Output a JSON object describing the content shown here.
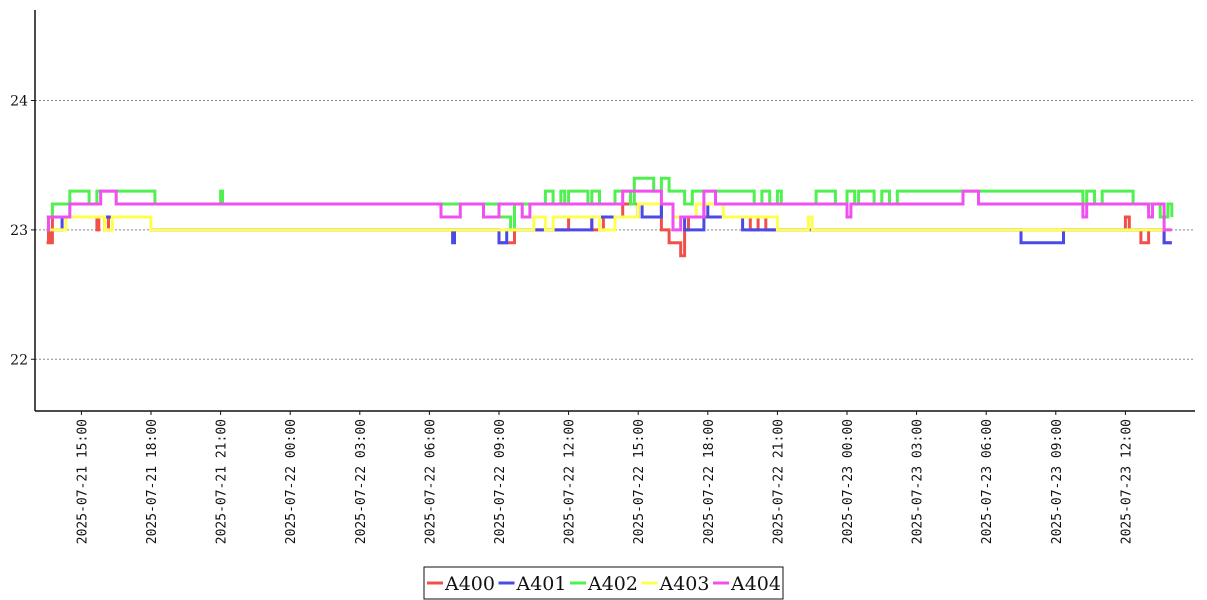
{
  "chart_data": {
    "type": "line",
    "title": "",
    "xlabel": "",
    "ylabel": "",
    "x_range": [
      "2025-07-21 13:00",
      "2025-07-23 15:00"
    ],
    "ylim": [
      21.6,
      24.7
    ],
    "yticks": [
      22,
      23,
      24
    ],
    "ytick_labels": [
      "22",
      "23",
      "24"
    ],
    "grid": "horizontal-dotted",
    "legend_position": "bottom-center",
    "xticks": [
      "2025-07-21 15:00",
      "2025-07-21 18:00",
      "2025-07-21 21:00",
      "2025-07-22 00:00",
      "2025-07-22 03:00",
      "2025-07-22 06:00",
      "2025-07-22 09:00",
      "2025-07-22 12:00",
      "2025-07-22 15:00",
      "2025-07-22 18:00",
      "2025-07-22 21:00",
      "2025-07-23 00:00",
      "2025-07-23 03:00",
      "2025-07-23 06:00",
      "2025-07-23 09:00",
      "2025-07-23 12:00"
    ],
    "series": [
      {
        "name": "A400",
        "color": "#f0504a",
        "points": [
          [
            "2025-07-21 13:30",
            22.9
          ],
          [
            "2025-07-21 13:35",
            23.0
          ],
          [
            "2025-07-21 13:40",
            22.9
          ],
          [
            "2025-07-21 13:45",
            23.1
          ],
          [
            "2025-07-21 15:40",
            23.0
          ],
          [
            "2025-07-21 15:45",
            23.1
          ],
          [
            "2025-07-21 16:00",
            23.0
          ],
          [
            "2025-07-21 16:10",
            23.1
          ],
          [
            "2025-07-21 18:00",
            23.0
          ],
          [
            "2025-07-22 09:00",
            22.9
          ],
          [
            "2025-07-22 09:40",
            23.0
          ],
          [
            "2025-07-22 10:00",
            23.0
          ],
          [
            "2025-07-22 12:00",
            23.1
          ],
          [
            "2025-07-22 13:00",
            23.0
          ],
          [
            "2025-07-22 13:30",
            23.1
          ],
          [
            "2025-07-22 14:20",
            23.2
          ],
          [
            "2025-07-22 16:00",
            23.0
          ],
          [
            "2025-07-22 16:20",
            22.9
          ],
          [
            "2025-07-22 16:50",
            22.8
          ],
          [
            "2025-07-22 17:00",
            23.0
          ],
          [
            "2025-07-22 17:10",
            23.1
          ],
          [
            "2025-07-22 19:50",
            23.0
          ],
          [
            "2025-07-22 20:10",
            23.1
          ],
          [
            "2025-07-22 20:30",
            23.0
          ],
          [
            "2025-07-23 12:00",
            23.1
          ],
          [
            "2025-07-23 12:10",
            23.0
          ],
          [
            "2025-07-23 12:40",
            22.9
          ],
          [
            "2025-07-23 13:00",
            23.0
          ],
          [
            "2025-07-23 13:40",
            22.9
          ],
          [
            "2025-07-23 14:00",
            22.9
          ]
        ]
      },
      {
        "name": "A401",
        "color": "#4a4ae8",
        "points": [
          [
            "2025-07-21 13:30",
            23.0
          ],
          [
            "2025-07-21 14:10",
            23.1
          ],
          [
            "2025-07-21 18:00",
            23.0
          ],
          [
            "2025-07-22 07:00",
            22.9
          ],
          [
            "2025-07-22 07:05",
            23.0
          ],
          [
            "2025-07-22 09:00",
            22.9
          ],
          [
            "2025-07-22 09:20",
            23.0
          ],
          [
            "2025-07-22 10:00",
            23.0
          ],
          [
            "2025-07-22 12:00",
            23.0
          ],
          [
            "2025-07-22 13:00",
            23.1
          ],
          [
            "2025-07-22 15:00",
            23.2
          ],
          [
            "2025-07-22 15:10",
            23.1
          ],
          [
            "2025-07-22 16:00",
            23.2
          ],
          [
            "2025-07-22 16:30",
            23.1
          ],
          [
            "2025-07-22 17:00",
            23.0
          ],
          [
            "2025-07-22 17:50",
            23.2
          ],
          [
            "2025-07-22 18:00",
            23.1
          ],
          [
            "2025-07-22 19:30",
            23.0
          ],
          [
            "2025-07-22 21:00",
            23.0
          ],
          [
            "2025-07-23 07:30",
            22.9
          ],
          [
            "2025-07-23 09:10",
            22.9
          ],
          [
            "2025-07-23 09:20",
            23.0
          ],
          [
            "2025-07-23 13:00",
            23.0
          ],
          [
            "2025-07-23 13:40",
            22.9
          ],
          [
            "2025-07-23 14:00",
            22.9
          ]
        ]
      },
      {
        "name": "A402",
        "color": "#50f050",
        "points": [
          [
            "2025-07-21 13:30",
            23.1
          ],
          [
            "2025-07-21 13:45",
            23.2
          ],
          [
            "2025-07-21 14:30",
            23.3
          ],
          [
            "2025-07-21 15:20",
            23.2
          ],
          [
            "2025-07-21 15:40",
            23.3
          ],
          [
            "2025-07-21 16:10",
            23.3
          ],
          [
            "2025-07-21 17:00",
            23.3
          ],
          [
            "2025-07-21 18:10",
            23.2
          ],
          [
            "2025-07-21 21:00",
            23.3
          ],
          [
            "2025-07-21 21:05",
            23.2
          ],
          [
            "2025-07-22 09:00",
            23.1
          ],
          [
            "2025-07-22 09:30",
            23.0
          ],
          [
            "2025-07-22 09:40",
            23.2
          ],
          [
            "2025-07-22 11:00",
            23.3
          ],
          [
            "2025-07-22 11:20",
            23.2
          ],
          [
            "2025-07-22 11:40",
            23.3
          ],
          [
            "2025-07-22 11:50",
            23.2
          ],
          [
            "2025-07-22 12:00",
            23.3
          ],
          [
            "2025-07-22 12:50",
            23.2
          ],
          [
            "2025-07-22 13:00",
            23.3
          ],
          [
            "2025-07-22 13:20",
            23.2
          ],
          [
            "2025-07-22 14:00",
            23.3
          ],
          [
            "2025-07-22 14:40",
            23.2
          ],
          [
            "2025-07-22 14:50",
            23.4
          ],
          [
            "2025-07-22 15:40",
            23.3
          ],
          [
            "2025-07-22 16:00",
            23.4
          ],
          [
            "2025-07-22 16:20",
            23.3
          ],
          [
            "2025-07-22 17:00",
            23.2
          ],
          [
            "2025-07-22 17:20",
            23.3
          ],
          [
            "2025-07-22 20:00",
            23.2
          ],
          [
            "2025-07-22 20:20",
            23.3
          ],
          [
            "2025-07-22 20:40",
            23.2
          ],
          [
            "2025-07-22 21:00",
            23.3
          ],
          [
            "2025-07-22 21:10",
            23.2
          ],
          [
            "2025-07-22 22:40",
            23.3
          ],
          [
            "2025-07-22 23:30",
            23.2
          ],
          [
            "2025-07-23 00:00",
            23.3
          ],
          [
            "2025-07-23 00:20",
            23.2
          ],
          [
            "2025-07-23 00:30",
            23.3
          ],
          [
            "2025-07-23 01:10",
            23.2
          ],
          [
            "2025-07-23 01:30",
            23.3
          ],
          [
            "2025-07-23 01:50",
            23.2
          ],
          [
            "2025-07-23 02:10",
            23.3
          ],
          [
            "2025-07-23 06:00",
            23.3
          ],
          [
            "2025-07-23 10:00",
            23.3
          ],
          [
            "2025-07-23 10:10",
            23.2
          ],
          [
            "2025-07-23 10:20",
            23.3
          ],
          [
            "2025-07-23 10:40",
            23.2
          ],
          [
            "2025-07-23 11:00",
            23.3
          ],
          [
            "2025-07-23 12:20",
            23.2
          ],
          [
            "2025-07-23 13:30",
            23.1
          ],
          [
            "2025-07-23 13:50",
            23.2
          ],
          [
            "2025-07-23 14:00",
            23.1
          ]
        ]
      },
      {
        "name": "A403",
        "color": "#ffff50",
        "points": [
          [
            "2025-07-21 13:30",
            23.0
          ],
          [
            "2025-07-21 14:20",
            23.1
          ],
          [
            "2025-07-21 16:00",
            23.0
          ],
          [
            "2025-07-21 16:20",
            23.1
          ],
          [
            "2025-07-21 18:00",
            23.0
          ],
          [
            "2025-07-22 10:30",
            23.1
          ],
          [
            "2025-07-22 11:00",
            23.0
          ],
          [
            "2025-07-22 11:20",
            23.1
          ],
          [
            "2025-07-22 12:00",
            23.1
          ],
          [
            "2025-07-22 13:20",
            23.0
          ],
          [
            "2025-07-22 14:00",
            23.1
          ],
          [
            "2025-07-22 15:00",
            23.2
          ],
          [
            "2025-07-22 16:30",
            23.1
          ],
          [
            "2025-07-22 17:30",
            23.2
          ],
          [
            "2025-07-22 18:40",
            23.1
          ],
          [
            "2025-07-22 20:30",
            23.1
          ],
          [
            "2025-07-22 21:00",
            23.0
          ],
          [
            "2025-07-22 22:20",
            23.1
          ],
          [
            "2025-07-22 22:30",
            23.0
          ],
          [
            "2025-07-23 13:40",
            23.0
          ],
          [
            "2025-07-23 14:00",
            23.0
          ]
        ]
      },
      {
        "name": "A404",
        "color": "#f050f0",
        "points": [
          [
            "2025-07-21 13:30",
            23.0
          ],
          [
            "2025-07-21 13:35",
            23.1
          ],
          [
            "2025-07-21 14:30",
            23.2
          ],
          [
            "2025-07-21 15:50",
            23.3
          ],
          [
            "2025-07-21 16:30",
            23.2
          ],
          [
            "2025-07-22 06:30",
            23.1
          ],
          [
            "2025-07-22 07:20",
            23.2
          ],
          [
            "2025-07-22 08:20",
            23.1
          ],
          [
            "2025-07-22 09:00",
            23.2
          ],
          [
            "2025-07-22 10:00",
            23.1
          ],
          [
            "2025-07-22 10:20",
            23.2
          ],
          [
            "2025-07-22 14:20",
            23.3
          ],
          [
            "2025-07-22 16:00",
            23.2
          ],
          [
            "2025-07-22 16:30",
            23.0
          ],
          [
            "2025-07-22 16:50",
            23.1
          ],
          [
            "2025-07-22 17:50",
            23.3
          ],
          [
            "2025-07-22 18:20",
            23.2
          ],
          [
            "2025-07-23 00:00",
            23.1
          ],
          [
            "2025-07-23 00:10",
            23.2
          ],
          [
            "2025-07-23 05:00",
            23.3
          ],
          [
            "2025-07-23 05:40",
            23.2
          ],
          [
            "2025-07-23 10:10",
            23.1
          ],
          [
            "2025-07-23 10:20",
            23.2
          ],
          [
            "2025-07-23 13:00",
            23.1
          ],
          [
            "2025-07-23 13:10",
            23.2
          ],
          [
            "2025-07-23 13:40",
            23.0
          ],
          [
            "2025-07-23 14:00",
            23.0
          ]
        ]
      }
    ]
  }
}
